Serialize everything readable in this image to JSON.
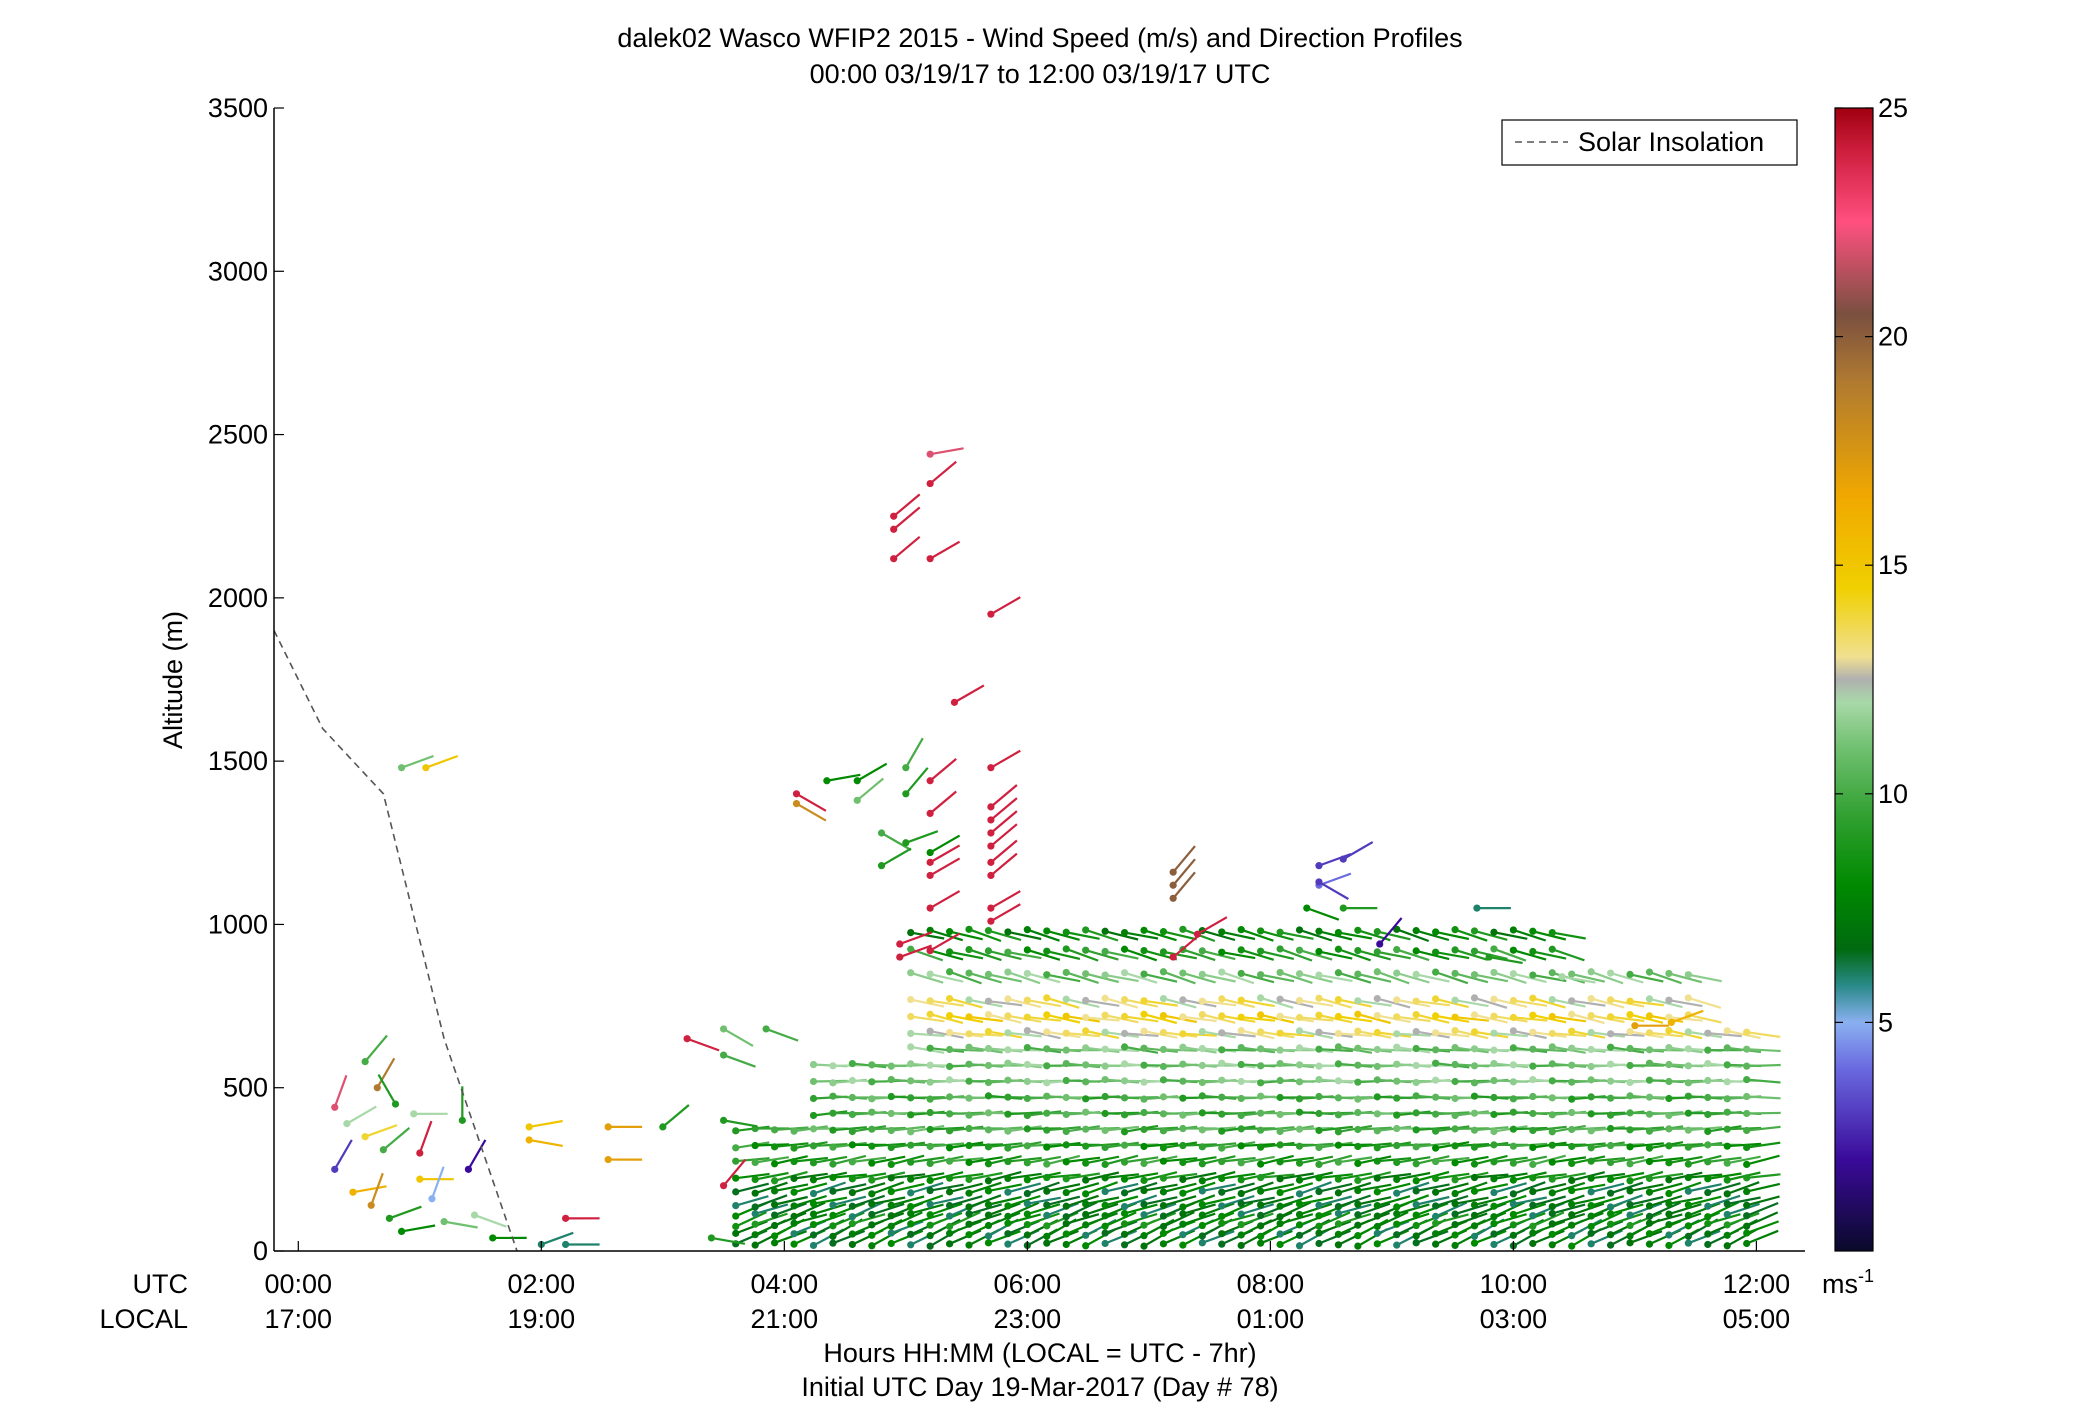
{
  "chart_data": {
    "type": "scatter",
    "title": "dalek02 Wasco WFIP2 2015 - Wind Speed (m/s) and Direction Profiles",
    "subtitle": "00:00 03/19/17 to 12:00 03/19/17  UTC",
    "ylabel": "Altitude (m)",
    "xlabel": "Hours HH:MM  (LOCAL = UTC - 7hr)",
    "xlabel2": "Initial UTC Day 19-Mar-2017 (Day # 78)",
    "utc_label": "UTC",
    "local_label": "LOCAL",
    "ylim": [
      0,
      3500
    ],
    "yticks": [
      0,
      500,
      1000,
      1500,
      2000,
      2500,
      3000,
      3500
    ],
    "xlim": [
      -0.2,
      12.4
    ],
    "xticks": [
      {
        "hour": 0,
        "utc": "00:00",
        "local": "17:00"
      },
      {
        "hour": 2,
        "utc": "02:00",
        "local": "19:00"
      },
      {
        "hour": 4,
        "utc": "04:00",
        "local": "21:00"
      },
      {
        "hour": 6,
        "utc": "06:00",
        "local": "23:00"
      },
      {
        "hour": 8,
        "utc": "08:00",
        "local": "01:00"
      },
      {
        "hour": 10,
        "utc": "10:00",
        "local": "03:00"
      },
      {
        "hour": 12,
        "utc": "12:00",
        "local": "05:00"
      }
    ],
    "legend": {
      "label": "Solar Insolation",
      "placement": "top-right"
    },
    "solar_insolation": {
      "x": [
        -0.2,
        0.2,
        0.7,
        1.2,
        1.8
      ],
      "y": [
        1900,
        1600,
        1400,
        650,
        0
      ]
    },
    "colorbar": {
      "min": 0,
      "max": 25,
      "ticks": [
        5,
        10,
        15,
        20,
        25
      ],
      "unit": "ms",
      "unit_exp": "-1",
      "stops": [
        {
          "v": 0,
          "c": "#0a0a2a"
        },
        {
          "v": 2,
          "c": "#3a0a9a"
        },
        {
          "v": 4,
          "c": "#6a6ae0"
        },
        {
          "v": 5,
          "c": "#8ab0f0"
        },
        {
          "v": 5.8,
          "c": "#2a8a8a"
        },
        {
          "v": 6.6,
          "c": "#006a10"
        },
        {
          "v": 8,
          "c": "#008a00"
        },
        {
          "v": 9.5,
          "c": "#30a030"
        },
        {
          "v": 11,
          "c": "#70c070"
        },
        {
          "v": 12,
          "c": "#a8d8a8"
        },
        {
          "v": 12.5,
          "c": "#b0b0b0"
        },
        {
          "v": 13,
          "c": "#f0e090"
        },
        {
          "v": 14.5,
          "c": "#f0d000"
        },
        {
          "v": 16.5,
          "c": "#f0a800"
        },
        {
          "v": 19,
          "c": "#b07a30"
        },
        {
          "v": 20.5,
          "c": "#7a5040"
        },
        {
          "v": 22.5,
          "c": "#ff5080"
        },
        {
          "v": 24,
          "c": "#d02040"
        },
        {
          "v": 25,
          "c": "#a00010"
        }
      ]
    },
    "barbs": [
      {
        "x": 0.3,
        "y": 440,
        "s": 22,
        "d": 200
      },
      {
        "x": 0.4,
        "y": 390,
        "s": 12,
        "d": 240
      },
      {
        "x": 0.55,
        "y": 350,
        "s": 14,
        "d": 250
      },
      {
        "x": 0.7,
        "y": 310,
        "s": 10,
        "d": 230
      },
      {
        "x": 0.3,
        "y": 250,
        "s": 3,
        "d": 210
      },
      {
        "x": 0.45,
        "y": 180,
        "s": 16,
        "d": 260
      },
      {
        "x": 0.6,
        "y": 140,
        "s": 18,
        "d": 200
      },
      {
        "x": 0.75,
        "y": 100,
        "s": 9,
        "d": 250
      },
      {
        "x": 0.85,
        "y": 60,
        "s": 8,
        "d": 260
      },
      {
        "x": 0.55,
        "y": 580,
        "s": 10,
        "d": 220
      },
      {
        "x": 0.65,
        "y": 500,
        "s": 19,
        "d": 210
      },
      {
        "x": 0.8,
        "y": 450,
        "s": 9,
        "d": 150
      },
      {
        "x": 0.95,
        "y": 420,
        "s": 12,
        "d": 270
      },
      {
        "x": 1.0,
        "y": 300,
        "s": 24,
        "d": 200
      },
      {
        "x": 1.0,
        "y": 220,
        "s": 15,
        "d": 270
      },
      {
        "x": 1.1,
        "y": 160,
        "s": 5,
        "d": 200
      },
      {
        "x": 1.2,
        "y": 90,
        "s": 11,
        "d": 280
      },
      {
        "x": 1.35,
        "y": 400,
        "s": 9,
        "d": 180
      },
      {
        "x": 1.4,
        "y": 250,
        "s": 2,
        "d": 210
      },
      {
        "x": 1.45,
        "y": 110,
        "s": 12,
        "d": 290
      },
      {
        "x": 1.6,
        "y": 40,
        "s": 8,
        "d": 270
      },
      {
        "x": 0.85,
        "y": 1480,
        "s": 11,
        "d": 250
      },
      {
        "x": 1.05,
        "y": 1480,
        "s": 15,
        "d": 250
      },
      {
        "x": 1.9,
        "y": 380,
        "s": 15,
        "d": 260
      },
      {
        "x": 1.9,
        "y": 340,
        "s": 16,
        "d": 280
      },
      {
        "x": 2.2,
        "y": 100,
        "s": 24,
        "d": 270
      },
      {
        "x": 2.0,
        "y": 20,
        "s": 6,
        "d": 250
      },
      {
        "x": 2.2,
        "y": 20,
        "s": 6,
        "d": 270
      },
      {
        "x": 2.55,
        "y": 380,
        "s": 17,
        "d": 270
      },
      {
        "x": 2.55,
        "y": 280,
        "s": 17,
        "d": 270
      },
      {
        "x": 3.0,
        "y": 380,
        "s": 9,
        "d": 230
      },
      {
        "x": 3.2,
        "y": 650,
        "s": 24,
        "d": 290
      },
      {
        "x": 3.5,
        "y": 680,
        "s": 11,
        "d": 300
      },
      {
        "x": 3.5,
        "y": 600,
        "s": 10,
        "d": 290
      },
      {
        "x": 3.5,
        "y": 400,
        "s": 9,
        "d": 280
      },
      {
        "x": 3.5,
        "y": 200,
        "s": 24,
        "d": 220
      },
      {
        "x": 3.4,
        "y": 40,
        "s": 9,
        "d": 280
      },
      {
        "x": 3.85,
        "y": 680,
        "s": 10,
        "d": 290
      },
      {
        "x": 4.1,
        "y": 1400,
        "s": 24,
        "d": 300
      },
      {
        "x": 4.1,
        "y": 1370,
        "s": 18,
        "d": 300
      },
      {
        "x": 4.35,
        "y": 1440,
        "s": 8,
        "d": 260
      },
      {
        "x": 4.6,
        "y": 1440,
        "s": 8,
        "d": 240
      },
      {
        "x": 4.6,
        "y": 1380,
        "s": 11,
        "d": 230
      },
      {
        "x": 4.8,
        "y": 1280,
        "s": 10,
        "d": 300
      },
      {
        "x": 5.0,
        "y": 1250,
        "s": 9,
        "d": 250
      },
      {
        "x": 5.2,
        "y": 1220,
        "s": 8,
        "d": 240
      },
      {
        "x": 5.0,
        "y": 1480,
        "s": 10,
        "d": 210
      },
      {
        "x": 5.0,
        "y": 1400,
        "s": 9,
        "d": 220
      },
      {
        "x": 4.8,
        "y": 1180,
        "s": 9,
        "d": 240
      },
      {
        "x": 4.9,
        "y": 2250,
        "s": 24,
        "d": 230
      },
      {
        "x": 4.9,
        "y": 2210,
        "s": 24,
        "d": 230
      },
      {
        "x": 4.9,
        "y": 2120,
        "s": 24,
        "d": 230
      },
      {
        "x": 5.2,
        "y": 2440,
        "s": 22,
        "d": 260
      },
      {
        "x": 5.2,
        "y": 2350,
        "s": 24,
        "d": 230
      },
      {
        "x": 5.2,
        "y": 2120,
        "s": 24,
        "d": 240
      },
      {
        "x": 5.7,
        "y": 1950,
        "s": 24,
        "d": 240
      },
      {
        "x": 5.4,
        "y": 1680,
        "s": 24,
        "d": 240
      },
      {
        "x": 5.7,
        "y": 1480,
        "s": 24,
        "d": 240
      },
      {
        "x": 5.7,
        "y": 1360,
        "s": 24,
        "d": 230
      },
      {
        "x": 5.7,
        "y": 1320,
        "s": 24,
        "d": 230
      },
      {
        "x": 5.7,
        "y": 1280,
        "s": 24,
        "d": 230
      },
      {
        "x": 5.7,
        "y": 1240,
        "s": 24,
        "d": 230
      },
      {
        "x": 5.7,
        "y": 1190,
        "s": 24,
        "d": 230
      },
      {
        "x": 5.7,
        "y": 1150,
        "s": 24,
        "d": 230
      },
      {
        "x": 5.7,
        "y": 1050,
        "s": 24,
        "d": 240
      },
      {
        "x": 5.7,
        "y": 1010,
        "s": 24,
        "d": 240
      },
      {
        "x": 5.2,
        "y": 1440,
        "s": 24,
        "d": 230
      },
      {
        "x": 5.2,
        "y": 1340,
        "s": 24,
        "d": 230
      },
      {
        "x": 5.2,
        "y": 1190,
        "s": 24,
        "d": 240
      },
      {
        "x": 5.2,
        "y": 1150,
        "s": 24,
        "d": 240
      },
      {
        "x": 5.2,
        "y": 1050,
        "s": 24,
        "d": 240
      },
      {
        "x": 5.2,
        "y": 920,
        "s": 24,
        "d": 240
      },
      {
        "x": 4.95,
        "y": 940,
        "s": 24,
        "d": 250
      },
      {
        "x": 4.95,
        "y": 900,
        "s": 24,
        "d": 250
      },
      {
        "x": 7.2,
        "y": 1160,
        "s": 20,
        "d": 220
      },
      {
        "x": 7.2,
        "y": 1120,
        "s": 20,
        "d": 220
      },
      {
        "x": 7.2,
        "y": 1080,
        "s": 20,
        "d": 220
      },
      {
        "x": 7.4,
        "y": 970,
        "s": 24,
        "d": 240
      },
      {
        "x": 7.2,
        "y": 900,
        "s": 24,
        "d": 230
      },
      {
        "x": 8.4,
        "y": 1180,
        "s": 3,
        "d": 250
      },
      {
        "x": 8.4,
        "y": 1120,
        "s": 4,
        "d": 250
      },
      {
        "x": 8.4,
        "y": 1130,
        "s": 3,
        "d": 300
      },
      {
        "x": 8.6,
        "y": 1200,
        "s": 3,
        "d": 240
      },
      {
        "x": 8.3,
        "y": 1050,
        "s": 8,
        "d": 290
      },
      {
        "x": 8.6,
        "y": 1050,
        "s": 9,
        "d": 270
      },
      {
        "x": 8.9,
        "y": 940,
        "s": 2,
        "d": 220
      },
      {
        "x": 9.7,
        "y": 1050,
        "s": 6,
        "d": 270
      },
      {
        "x": 11.3,
        "y": 700,
        "s": 16,
        "d": 250
      },
      {
        "x": 11.0,
        "y": 690,
        "s": 17,
        "d": 270
      },
      {
        "x": 10.4,
        "y": 840,
        "s": 12,
        "d": 280
      },
      {
        "x": 9.8,
        "y": 900,
        "s": 9,
        "d": 280
      }
    ],
    "field": {
      "start_hour": 3.6,
      "end_hour": 12.0,
      "step_hour": 0.16,
      "layers": [
        {
          "alt": 20,
          "s": 7,
          "d": 245
        },
        {
          "alt": 50,
          "s": 7,
          "d": 245
        },
        {
          "alt": 80,
          "s": 8,
          "d": 250
        },
        {
          "alt": 110,
          "s": 7,
          "d": 250
        },
        {
          "alt": 140,
          "s": 7,
          "d": 255
        },
        {
          "alt": 180,
          "s": 7,
          "d": 255
        },
        {
          "alt": 220,
          "s": 8,
          "d": 260
        },
        {
          "alt": 270,
          "s": 9,
          "d": 260
        },
        {
          "alt": 320,
          "s": 9,
          "d": 265
        },
        {
          "alt": 370,
          "s": 10,
          "d": 265
        },
        {
          "alt": 420,
          "s": 10,
          "d": 268
        },
        {
          "alt": 470,
          "s": 10,
          "d": 270
        },
        {
          "alt": 520,
          "s": 11,
          "d": 270
        },
        {
          "alt": 570,
          "s": 11,
          "d": 272
        },
        {
          "alt": 620,
          "s": 11,
          "d": 275
        },
        {
          "alt": 670,
          "s": 13,
          "d": 278
        },
        {
          "alt": 720,
          "s": 14,
          "d": 280
        },
        {
          "alt": 770,
          "s": 13,
          "d": 282
        },
        {
          "alt": 850,
          "s": 11,
          "d": 285
        },
        {
          "alt": 920,
          "s": 9,
          "d": 285
        },
        {
          "alt": 980,
          "s": 8,
          "d": 285
        }
      ]
    }
  }
}
